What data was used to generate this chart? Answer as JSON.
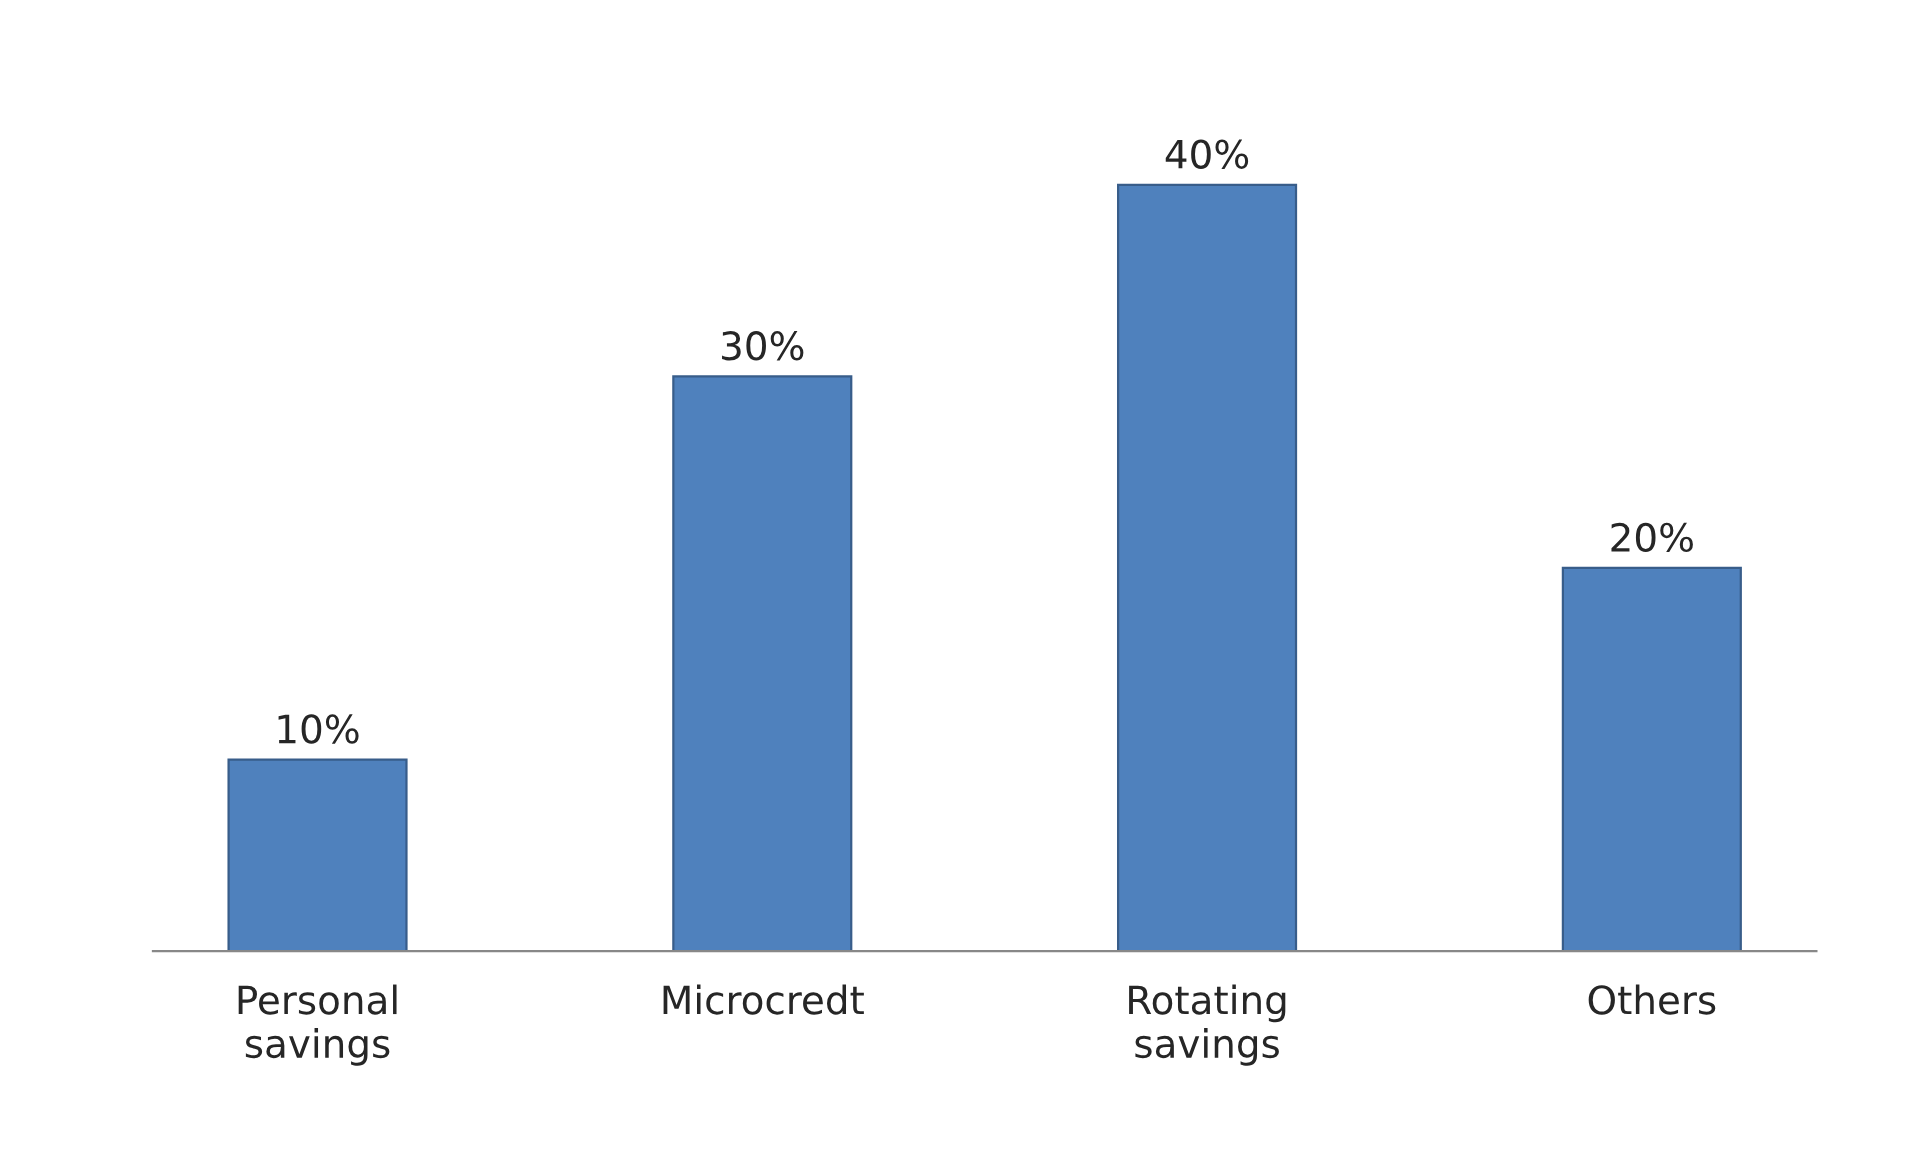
{
  "chart_data": {
    "type": "bar",
    "categories": [
      "Personal\nsavings",
      "Microcredt",
      "Rotating\nsavings",
      "Others"
    ],
    "values": [
      10,
      30,
      40,
      20
    ],
    "value_labels": [
      "10%",
      "30%",
      "40%",
      "20%"
    ],
    "color": "#4f81bd",
    "grid": false,
    "legend": false
  }
}
